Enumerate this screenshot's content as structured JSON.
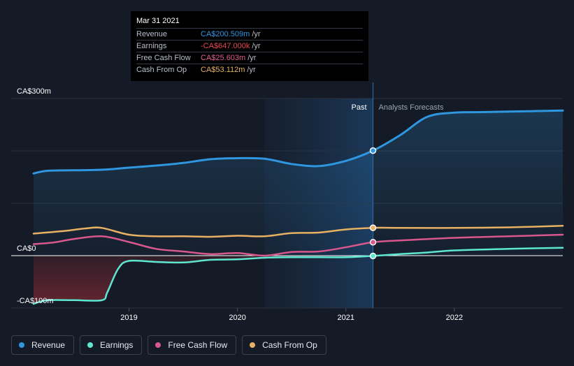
{
  "tooltip": {
    "date": "Mar 31 2021",
    "rows": [
      {
        "label": "Revenue",
        "value": "CA$200.509m",
        "unit": "/yr",
        "color": "#2f96e0"
      },
      {
        "label": "Earnings",
        "value": "-CA$647.000k",
        "unit": "/yr",
        "color": "#e8464e"
      },
      {
        "label": "Free Cash Flow",
        "value": "CA$25.603m",
        "unit": "/yr",
        "color": "#e05c8e"
      },
      {
        "label": "Cash From Op",
        "value": "CA$53.112m",
        "unit": "/yr",
        "color": "#e8b062"
      }
    ]
  },
  "regions": {
    "past": "Past",
    "forecast": "Analysts Forecasts"
  },
  "legend": [
    {
      "label": "Revenue",
      "color": "#2f96e0"
    },
    {
      "label": "Earnings",
      "color": "#5ee7d0"
    },
    {
      "label": "Free Cash Flow",
      "color": "#d8578c"
    },
    {
      "label": "Cash From Op",
      "color": "#e8b062"
    }
  ],
  "chart_data": {
    "type": "line",
    "y_tick_labels": [
      {
        "value": 300,
        "label": "CA$300m"
      },
      {
        "value": 0,
        "label": "CA$0"
      },
      {
        "value": -100,
        "label": "-CA$100m"
      }
    ],
    "x_tick_labels": [
      "2019",
      "2020",
      "2021",
      "2022"
    ],
    "xlim": [
      2018.12,
      2023.0
    ],
    "ylim": [
      -100,
      300
    ],
    "grid": true,
    "past_end": 2021.25,
    "highlight_start": 2020.25,
    "series": [
      {
        "name": "Revenue",
        "color": "#2f96e0",
        "points": [
          [
            2018.12,
            157
          ],
          [
            2018.25,
            162
          ],
          [
            2018.5,
            163
          ],
          [
            2018.75,
            164
          ],
          [
            2019.0,
            168
          ],
          [
            2019.25,
            172
          ],
          [
            2019.5,
            177
          ],
          [
            2019.75,
            184
          ],
          [
            2020.0,
            186
          ],
          [
            2020.25,
            185
          ],
          [
            2020.5,
            175
          ],
          [
            2020.75,
            171
          ],
          [
            2021.0,
            181
          ],
          [
            2021.25,
            200.5
          ],
          [
            2021.5,
            230
          ],
          [
            2021.75,
            265
          ],
          [
            2022.0,
            273
          ],
          [
            2022.25,
            274
          ],
          [
            2022.5,
            275
          ],
          [
            2022.75,
            276
          ],
          [
            2023.0,
            277
          ]
        ]
      },
      {
        "name": "Earnings",
        "color": "#5ee7d0",
        "points": [
          [
            2018.12,
            -92
          ],
          [
            2018.25,
            -85
          ],
          [
            2018.5,
            -85
          ],
          [
            2018.75,
            -85
          ],
          [
            2018.8,
            -70
          ],
          [
            2018.9,
            -25
          ],
          [
            2019.0,
            -10
          ],
          [
            2019.25,
            -12
          ],
          [
            2019.5,
            -13
          ],
          [
            2019.75,
            -8
          ],
          [
            2020.0,
            -7
          ],
          [
            2020.25,
            -4
          ],
          [
            2020.5,
            -3
          ],
          [
            2020.75,
            -3
          ],
          [
            2021.0,
            -3
          ],
          [
            2021.25,
            -0.6
          ],
          [
            2021.5,
            3
          ],
          [
            2021.75,
            6
          ],
          [
            2022.0,
            10
          ],
          [
            2022.5,
            13
          ],
          [
            2023.0,
            15
          ]
        ]
      },
      {
        "name": "Free Cash Flow",
        "color": "#d8578c",
        "points": [
          [
            2018.12,
            22
          ],
          [
            2018.3,
            25
          ],
          [
            2018.5,
            32
          ],
          [
            2018.75,
            37
          ],
          [
            2019.0,
            26
          ],
          [
            2019.25,
            13
          ],
          [
            2019.5,
            8
          ],
          [
            2019.75,
            3
          ],
          [
            2020.0,
            5
          ],
          [
            2020.25,
            0
          ],
          [
            2020.5,
            7
          ],
          [
            2020.75,
            8
          ],
          [
            2021.0,
            16
          ],
          [
            2021.25,
            25.6
          ],
          [
            2021.5,
            29
          ],
          [
            2022.0,
            34
          ],
          [
            2022.5,
            37
          ],
          [
            2023.0,
            40
          ]
        ]
      },
      {
        "name": "Cash From Op",
        "color": "#e8b062",
        "points": [
          [
            2018.12,
            42
          ],
          [
            2018.4,
            47
          ],
          [
            2018.6,
            52
          ],
          [
            2018.75,
            53
          ],
          [
            2019.0,
            40
          ],
          [
            2019.25,
            37
          ],
          [
            2019.5,
            37
          ],
          [
            2019.75,
            36
          ],
          [
            2020.0,
            38
          ],
          [
            2020.25,
            37
          ],
          [
            2020.5,
            43
          ],
          [
            2020.75,
            44
          ],
          [
            2021.0,
            50
          ],
          [
            2021.25,
            53.1
          ],
          [
            2021.5,
            53
          ],
          [
            2022.0,
            53
          ],
          [
            2022.5,
            54
          ],
          [
            2023.0,
            57
          ]
        ]
      }
    ],
    "markers": [
      {
        "series": "Revenue",
        "x": 2021.25,
        "y": 200.5
      },
      {
        "series": "Cash From Op",
        "x": 2021.25,
        "y": 53.1
      },
      {
        "series": "Free Cash Flow",
        "x": 2021.25,
        "y": 25.6
      },
      {
        "series": "Earnings",
        "x": 2021.25,
        "y": -0.6
      }
    ]
  }
}
